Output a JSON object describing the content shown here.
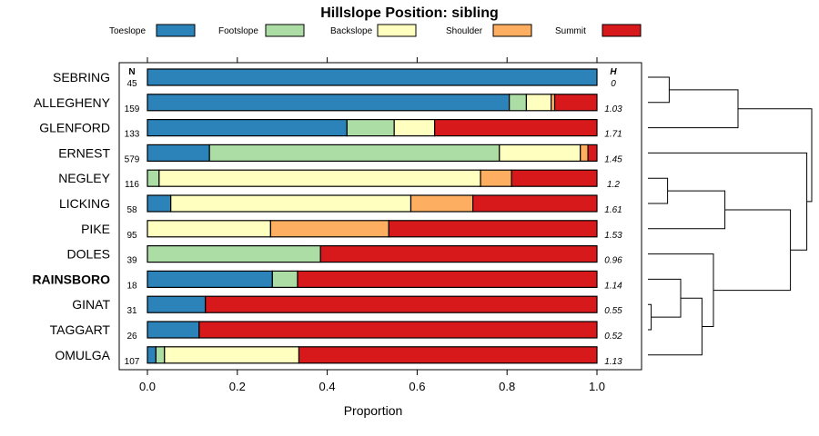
{
  "chart_data": {
    "type": "bar",
    "orientation": "horizontal",
    "stacked": true,
    "title": "Hillslope Position: sibling",
    "xlabel": "Proportion",
    "xlim": [
      0,
      1
    ],
    "xticks": [
      "0.0",
      "0.2",
      "0.4",
      "0.6",
      "0.8",
      "1.0"
    ],
    "n_header": "N",
    "h_header": "H",
    "legend": [
      {
        "name": "Toeslope",
        "color": "#2B83BA"
      },
      {
        "name": "Footslope",
        "color": "#ABDDA4"
      },
      {
        "name": "Backslope",
        "color": "#FFFFBF"
      },
      {
        "name": "Shoulder",
        "color": "#FDAE61"
      },
      {
        "name": "Summit",
        "color": "#D7191C"
      }
    ],
    "rows": [
      {
        "name": "SEBRING",
        "n": "45",
        "h": "0",
        "bold": false,
        "values": [
          1.0,
          0,
          0,
          0,
          0
        ]
      },
      {
        "name": "ALLEGHENY",
        "n": "159",
        "h": "1.03",
        "bold": false,
        "values": [
          0.805,
          0.038,
          0.055,
          0.008,
          0.094
        ]
      },
      {
        "name": "GLENFORD",
        "n": "133",
        "h": "1.71",
        "bold": false,
        "values": [
          0.444,
          0.105,
          0.09,
          0,
          0.361
        ]
      },
      {
        "name": "ERNEST",
        "n": "579",
        "h": "1.45",
        "bold": false,
        "values": [
          0.138,
          0.645,
          0.18,
          0.017,
          0.02
        ]
      },
      {
        "name": "NEGLEY",
        "n": "116",
        "h": "1.2",
        "bold": false,
        "values": [
          0,
          0.026,
          0.715,
          0.069,
          0.19
        ]
      },
      {
        "name": "LICKING",
        "n": "58",
        "h": "1.61",
        "bold": false,
        "values": [
          0.052,
          0,
          0.534,
          0.138,
          0.276
        ]
      },
      {
        "name": "PIKE",
        "n": "95",
        "h": "1.53",
        "bold": false,
        "values": [
          0,
          0,
          0.274,
          0.263,
          0.463
        ]
      },
      {
        "name": "DOLES",
        "n": "39",
        "h": "0.96",
        "bold": false,
        "values": [
          0,
          0.385,
          0,
          0,
          0.615
        ]
      },
      {
        "name": "RAINSBORO",
        "n": "18",
        "h": "1.14",
        "bold": true,
        "values": [
          0.278,
          0.056,
          0,
          0,
          0.666
        ]
      },
      {
        "name": "GINAT",
        "n": "31",
        "h": "0.55",
        "bold": false,
        "values": [
          0.129,
          0,
          0,
          0,
          0.871
        ]
      },
      {
        "name": "TAGGART",
        "n": "26",
        "h": "0.52",
        "bold": false,
        "values": [
          0.115,
          0,
          0,
          0,
          0.885
        ]
      },
      {
        "name": "OMULGA",
        "n": "107",
        "h": "1.13",
        "bold": false,
        "values": [
          0.019,
          0.019,
          0.299,
          0,
          0.663
        ]
      }
    ],
    "dendrogram": {
      "leaf_order": [
        "SEBRING",
        "ALLEGHENY",
        "GLENFORD",
        "ERNEST",
        "NEGLEY",
        "LICKING",
        "PIKE",
        "DOLES",
        "RAINSBORO",
        "GINAT",
        "TAGGART",
        "OMULGA"
      ],
      "merges": [
        {
          "a": "SEBRING",
          "b": "ALLEGHENY",
          "height": 0.13
        },
        {
          "a": "NEGLEY",
          "b": "LICKING",
          "height": 0.12
        },
        {
          "a": "GINAT",
          "b": "TAGGART",
          "height": 0.02
        },
        {
          "a": "RAINSBORO",
          "b": "GINAT+TAGGART",
          "height": 0.2
        },
        {
          "a": "NEGLEY+LICKING",
          "b": "PIKE",
          "height": 0.47
        },
        {
          "a": "RAINSBORO+GINAT+TAGGART",
          "b": "OMULGA",
          "height": 0.33
        },
        {
          "a": "DOLES",
          "b": "RAINSBORO+GINAT+TAGGART+OMULGA",
          "height": 0.4
        },
        {
          "a": "SEBRING+ALLEGHENY",
          "b": "GLENFORD",
          "height": 0.55
        },
        {
          "a": "NEGLEY+LICKING+PIKE",
          "b": "DOLES+RAINSBORO+GINAT+TAGGART+OMULGA",
          "height": 0.87
        },
        {
          "a": "ERNEST",
          "b": "NEGLEY+LICKING+PIKE+DOLES+RAINSBORO+GINAT+TAGGART+OMULGA",
          "height": 0.97
        },
        {
          "a": "SEBRING+ALLEGHENY+GLENFORD",
          "b": "ERNEST+NEGLEY+LICKING+PIKE+DOLES+RAINSBORO+GINAT+TAGGART+OMULGA",
          "height": 1.0
        }
      ]
    }
  }
}
